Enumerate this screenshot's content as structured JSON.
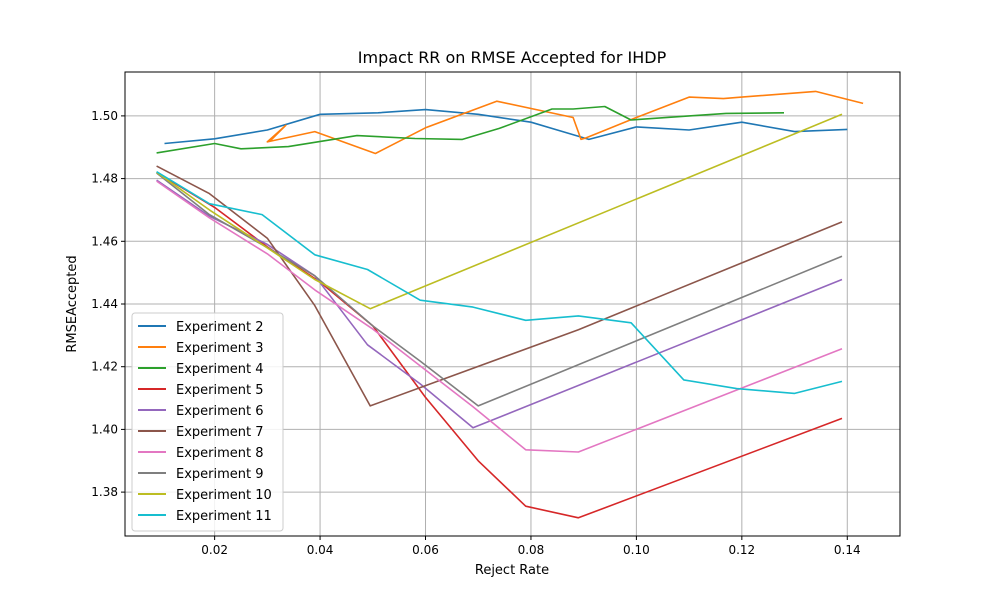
{
  "chart_data": {
    "type": "line",
    "title": "Impact RR on RMSE Accepted for IHDP",
    "xlabel": "Reject Rate",
    "ylabel": "RMSEAccepted",
    "xlim": [
      0.003,
      0.15
    ],
    "ylim": [
      1.366,
      1.514
    ],
    "xticks": [
      0.02,
      0.04,
      0.06,
      0.08,
      0.1,
      0.12,
      0.14
    ],
    "xtick_labels": [
      "0.02",
      "0.04",
      "0.06",
      "0.08",
      "0.10",
      "0.12",
      "0.14"
    ],
    "yticks": [
      1.38,
      1.4,
      1.42,
      1.44,
      1.46,
      1.48,
      1.5
    ],
    "ytick_labels": [
      "1.38",
      "1.40",
      "1.42",
      "1.44",
      "1.46",
      "1.48",
      "1.50"
    ],
    "grid": true,
    "legend_position": "lower-left",
    "series": [
      {
        "name": "Experiment 2",
        "color": "#1f77b4",
        "x": [
          0.0105,
          0.02,
          0.03,
          0.04,
          0.051,
          0.06,
          0.07,
          0.08,
          0.091,
          0.1,
          0.11,
          0.12,
          0.13,
          0.14
        ],
        "y": [
          1.4912,
          1.4927,
          1.4955,
          1.5005,
          1.501,
          1.502,
          1.5005,
          1.498,
          1.4925,
          1.4965,
          1.4955,
          1.498,
          1.495,
          1.4957
        ]
      },
      {
        "name": "Experiment 3",
        "color": "#ff7f0e",
        "x": [
          0.0305,
          0.0335,
          0.03,
          0.039,
          0.0505,
          0.06,
          0.0735,
          0.088,
          0.0895,
          0.0905,
          0.1,
          0.11,
          0.1165,
          0.12,
          0.134,
          0.143
        ],
        "y": [
          1.492,
          1.497,
          1.4917,
          1.495,
          1.488,
          1.4962,
          1.5047,
          1.4995,
          1.4925,
          1.493,
          1.4995,
          1.506,
          1.5055,
          1.506,
          1.5078,
          1.504
        ]
      },
      {
        "name": "Experiment 4",
        "color": "#2ca02c",
        "x": [
          0.009,
          0.02,
          0.025,
          0.034,
          0.047,
          0.058,
          0.067,
          0.074,
          0.084,
          0.088,
          0.094,
          0.099,
          0.11,
          0.117,
          0.128
        ],
        "y": [
          1.4882,
          1.4912,
          1.4895,
          1.4902,
          1.4937,
          1.4928,
          1.4925,
          1.496,
          1.5022,
          1.5022,
          1.503,
          1.4987,
          1.5,
          1.5008,
          1.501
        ]
      },
      {
        "name": "Experiment 5",
        "color": "#d62728",
        "x": [
          0.009,
          0.02,
          0.03,
          0.04,
          0.05,
          0.06,
          0.07,
          0.079,
          0.089,
          0.139
        ],
        "y": [
          1.482,
          1.4708,
          1.4582,
          1.447,
          1.433,
          1.4102,
          1.39,
          1.3755,
          1.3718,
          1.4035
        ]
      },
      {
        "name": "Experiment 6",
        "color": "#9467bd",
        "x": [
          0.009,
          0.019,
          0.03,
          0.039,
          0.049,
          0.059,
          0.069,
          0.139
        ],
        "y": [
          1.4795,
          1.468,
          1.459,
          1.449,
          1.427,
          1.4145,
          1.4005,
          1.4478
        ]
      },
      {
        "name": "Experiment 7",
        "color": "#8c564b",
        "x": [
          0.009,
          0.019,
          0.03,
          0.039,
          0.0495,
          0.089,
          0.139
        ],
        "y": [
          1.484,
          1.4752,
          1.461,
          1.4395,
          1.4075,
          1.4318,
          1.4662
        ]
      },
      {
        "name": "Experiment 8",
        "color": "#e377c2",
        "x": [
          0.009,
          0.019,
          0.03,
          0.039,
          0.05,
          0.069,
          0.079,
          0.089,
          0.139
        ],
        "y": [
          1.4792,
          1.4675,
          1.456,
          1.4445,
          1.432,
          1.4072,
          1.3935,
          1.3928,
          1.4257
        ]
      },
      {
        "name": "Experiment 9",
        "color": "#7f7f7f",
        "x": [
          0.009,
          0.019,
          0.03,
          0.039,
          0.05,
          0.059,
          0.07,
          0.139
        ],
        "y": [
          1.4818,
          1.4685,
          1.458,
          1.449,
          1.433,
          1.4218,
          1.4075,
          1.4552
        ]
      },
      {
        "name": "Experiment 10",
        "color": "#bcbd22",
        "x": [
          0.009,
          0.019,
          0.029,
          0.039,
          0.0495,
          0.139
        ],
        "y": [
          1.482,
          1.47,
          1.459,
          1.4478,
          1.4385,
          1.5005
        ]
      },
      {
        "name": "Experiment 11",
        "color": "#17becf",
        "x": [
          0.009,
          0.019,
          0.029,
          0.039,
          0.049,
          0.059,
          0.069,
          0.079,
          0.089,
          0.099,
          0.109,
          0.119,
          0.13,
          0.139
        ],
        "y": [
          1.4822,
          1.472,
          1.4685,
          1.4557,
          1.451,
          1.4412,
          1.439,
          1.4348,
          1.4362,
          1.434,
          1.4158,
          1.413,
          1.4115,
          1.4153
        ]
      }
    ]
  }
}
